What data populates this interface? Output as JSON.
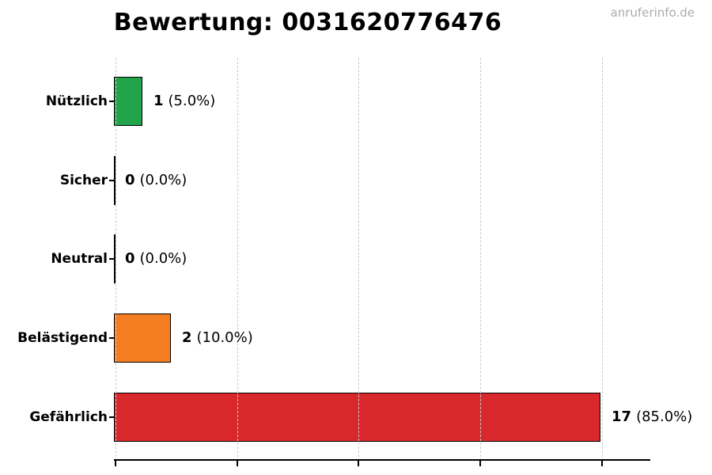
{
  "title": "Bewertung: 0031620776476",
  "watermark": "anruferinfo.de",
  "chart_data": {
    "type": "bar",
    "orientation": "horizontal",
    "title": "Bewertung: 0031620776476",
    "categories": [
      "Nützlich",
      "Sicher",
      "Neutral",
      "Belästigend",
      "Gefährlich"
    ],
    "values": [
      1,
      0,
      0,
      2,
      17
    ],
    "percentages": [
      5.0,
      0.0,
      0.0,
      10.0,
      85.0
    ],
    "pct_labels": [
      "(5.0%)",
      "(0.0%)",
      "(0.0%)",
      "(10.0%)",
      "(85.0%)"
    ],
    "bar_fills": [
      "#22a44a",
      "#ffffff",
      "#ffffff",
      "#f57d21",
      "#d9282c"
    ],
    "bar_edge_color": "#000000",
    "xlim": [
      0,
      18.7
    ],
    "x_ticks": [
      0,
      4.25,
      8.5,
      12.75,
      17
    ],
    "grid": "vertical-dashed",
    "legend": "none"
  }
}
